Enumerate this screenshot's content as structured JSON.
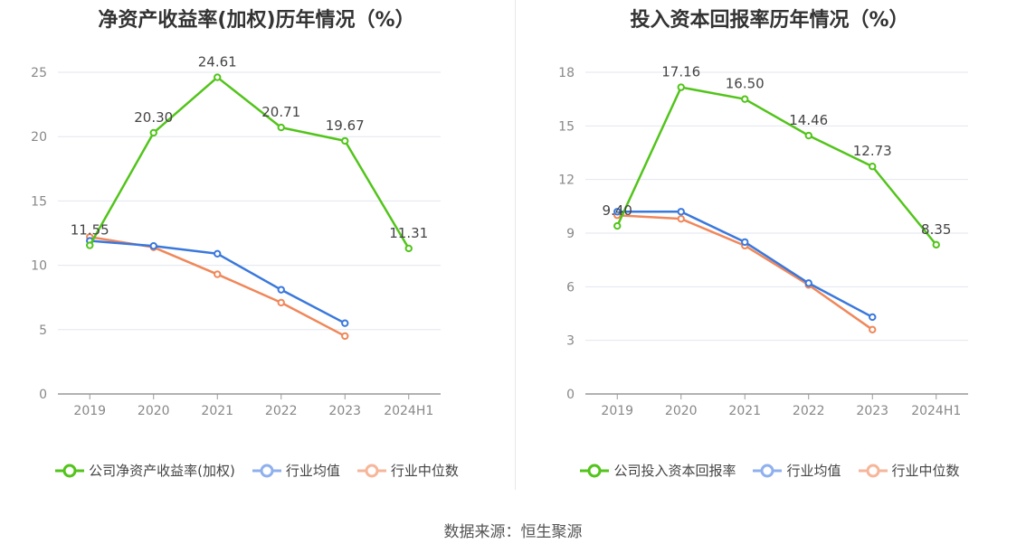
{
  "source": "数据来源：恒生聚源",
  "colors": {
    "company": "#52c41a",
    "avg": "#3a78dc",
    "median": "#f0875a",
    "grid": "#e3e6ef",
    "axis": "#999999",
    "tick_text": "#888888",
    "label_text": "#444444"
  },
  "chart_data": [
    {
      "type": "line",
      "title": "净资产收益率(加权)历年情况（%）",
      "categories": [
        "2019",
        "2020",
        "2021",
        "2022",
        "2023",
        "2024H1"
      ],
      "ylim": [
        0,
        25
      ],
      "yticks": [
        "0",
        "5",
        "10",
        "15",
        "20",
        "25"
      ],
      "grid": true,
      "legend_position": "bottom",
      "series": [
        {
          "name": "公司净资产收益率(加权)",
          "color_key": "company",
          "values": [
            11.55,
            20.3,
            24.61,
            20.71,
            19.67,
            11.31
          ],
          "labels": [
            "11.55",
            "20.30",
            "24.61",
            "20.71",
            "19.67",
            "11.31"
          ]
        },
        {
          "name": "行业均值",
          "color_key": "avg",
          "values": [
            11.9,
            11.5,
            10.9,
            8.1,
            5.5,
            null
          ]
        },
        {
          "name": "行业中位数",
          "color_key": "median",
          "values": [
            12.2,
            11.4,
            9.3,
            7.1,
            4.5,
            null
          ]
        }
      ]
    },
    {
      "type": "line",
      "title": "投入资本回报率历年情况（%）",
      "categories": [
        "2019",
        "2020",
        "2021",
        "2022",
        "2023",
        "2024H1"
      ],
      "ylim": [
        0,
        18
      ],
      "yticks": [
        "0",
        "3",
        "6",
        "9",
        "12",
        "15",
        "18"
      ],
      "grid": true,
      "legend_position": "bottom",
      "series": [
        {
          "name": "公司投入资本回报率",
          "color_key": "company",
          "values": [
            9.4,
            17.16,
            16.5,
            14.46,
            12.73,
            8.35
          ],
          "labels": [
            "9.40",
            "17.16",
            "16.50",
            "14.46",
            "12.73",
            "8.35"
          ]
        },
        {
          "name": "行业均值",
          "color_key": "avg",
          "values": [
            10.2,
            10.2,
            8.5,
            6.2,
            4.3,
            null
          ]
        },
        {
          "name": "行业中位数",
          "color_key": "median",
          "values": [
            10.0,
            9.8,
            8.3,
            6.1,
            3.6,
            null
          ]
        }
      ]
    }
  ]
}
